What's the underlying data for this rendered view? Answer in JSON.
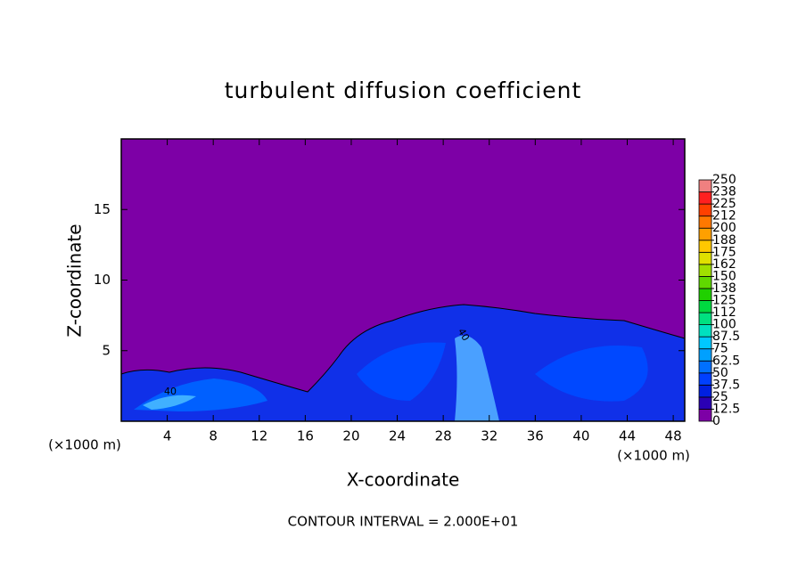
{
  "chart_data": {
    "type": "contour",
    "title": "turbulent diffusion coefficient",
    "x_label": "X-coordinate",
    "y_label": "Z-coordinate",
    "x_unit_labels": [
      "(×1000 m)",
      "(×1000 m)"
    ],
    "footnote": "CONTOUR INTERVAL = 2.000E+01",
    "contour_labels": [
      "40",
      "40"
    ],
    "xlim": [
      0,
      49
    ],
    "xticks": [
      4,
      8,
      12,
      16,
      20,
      24,
      28,
      32,
      36,
      40,
      44,
      48
    ],
    "ylim": [
      0,
      20
    ],
    "yticks": [
      5,
      10,
      15
    ],
    "colorbar": {
      "clim": [
        0,
        250
      ],
      "ticks": [
        0,
        12.5,
        25,
        37.5,
        50,
        62.5,
        75,
        87.5,
        100,
        {
          "value": 112.5,
          "label": "112"
        },
        125,
        {
          "value": 137.5,
          "label": "138"
        },
        150,
        {
          "value": 162.5,
          "label": "162"
        },
        175,
        {
          "value": 187.5,
          "label": "188"
        },
        200,
        {
          "value": 212.5,
          "label": "212"
        },
        225,
        {
          "value": 237.5,
          "label": "238"
        },
        250
      ],
      "colors": [
        "#7d00a6",
        "#2a00b4",
        "#0020e0",
        "#0040ff",
        "#0070ff",
        "#00a0ff",
        "#00c8ff",
        "#00e0c0",
        "#00e080",
        "#00d840",
        "#20d000",
        "#60d800",
        "#a0e000",
        "#e0e000",
        "#ffc800",
        "#ffa000",
        "#ff7800",
        "#ff4000",
        "#ff2020",
        "#f08080"
      ]
    }
  }
}
